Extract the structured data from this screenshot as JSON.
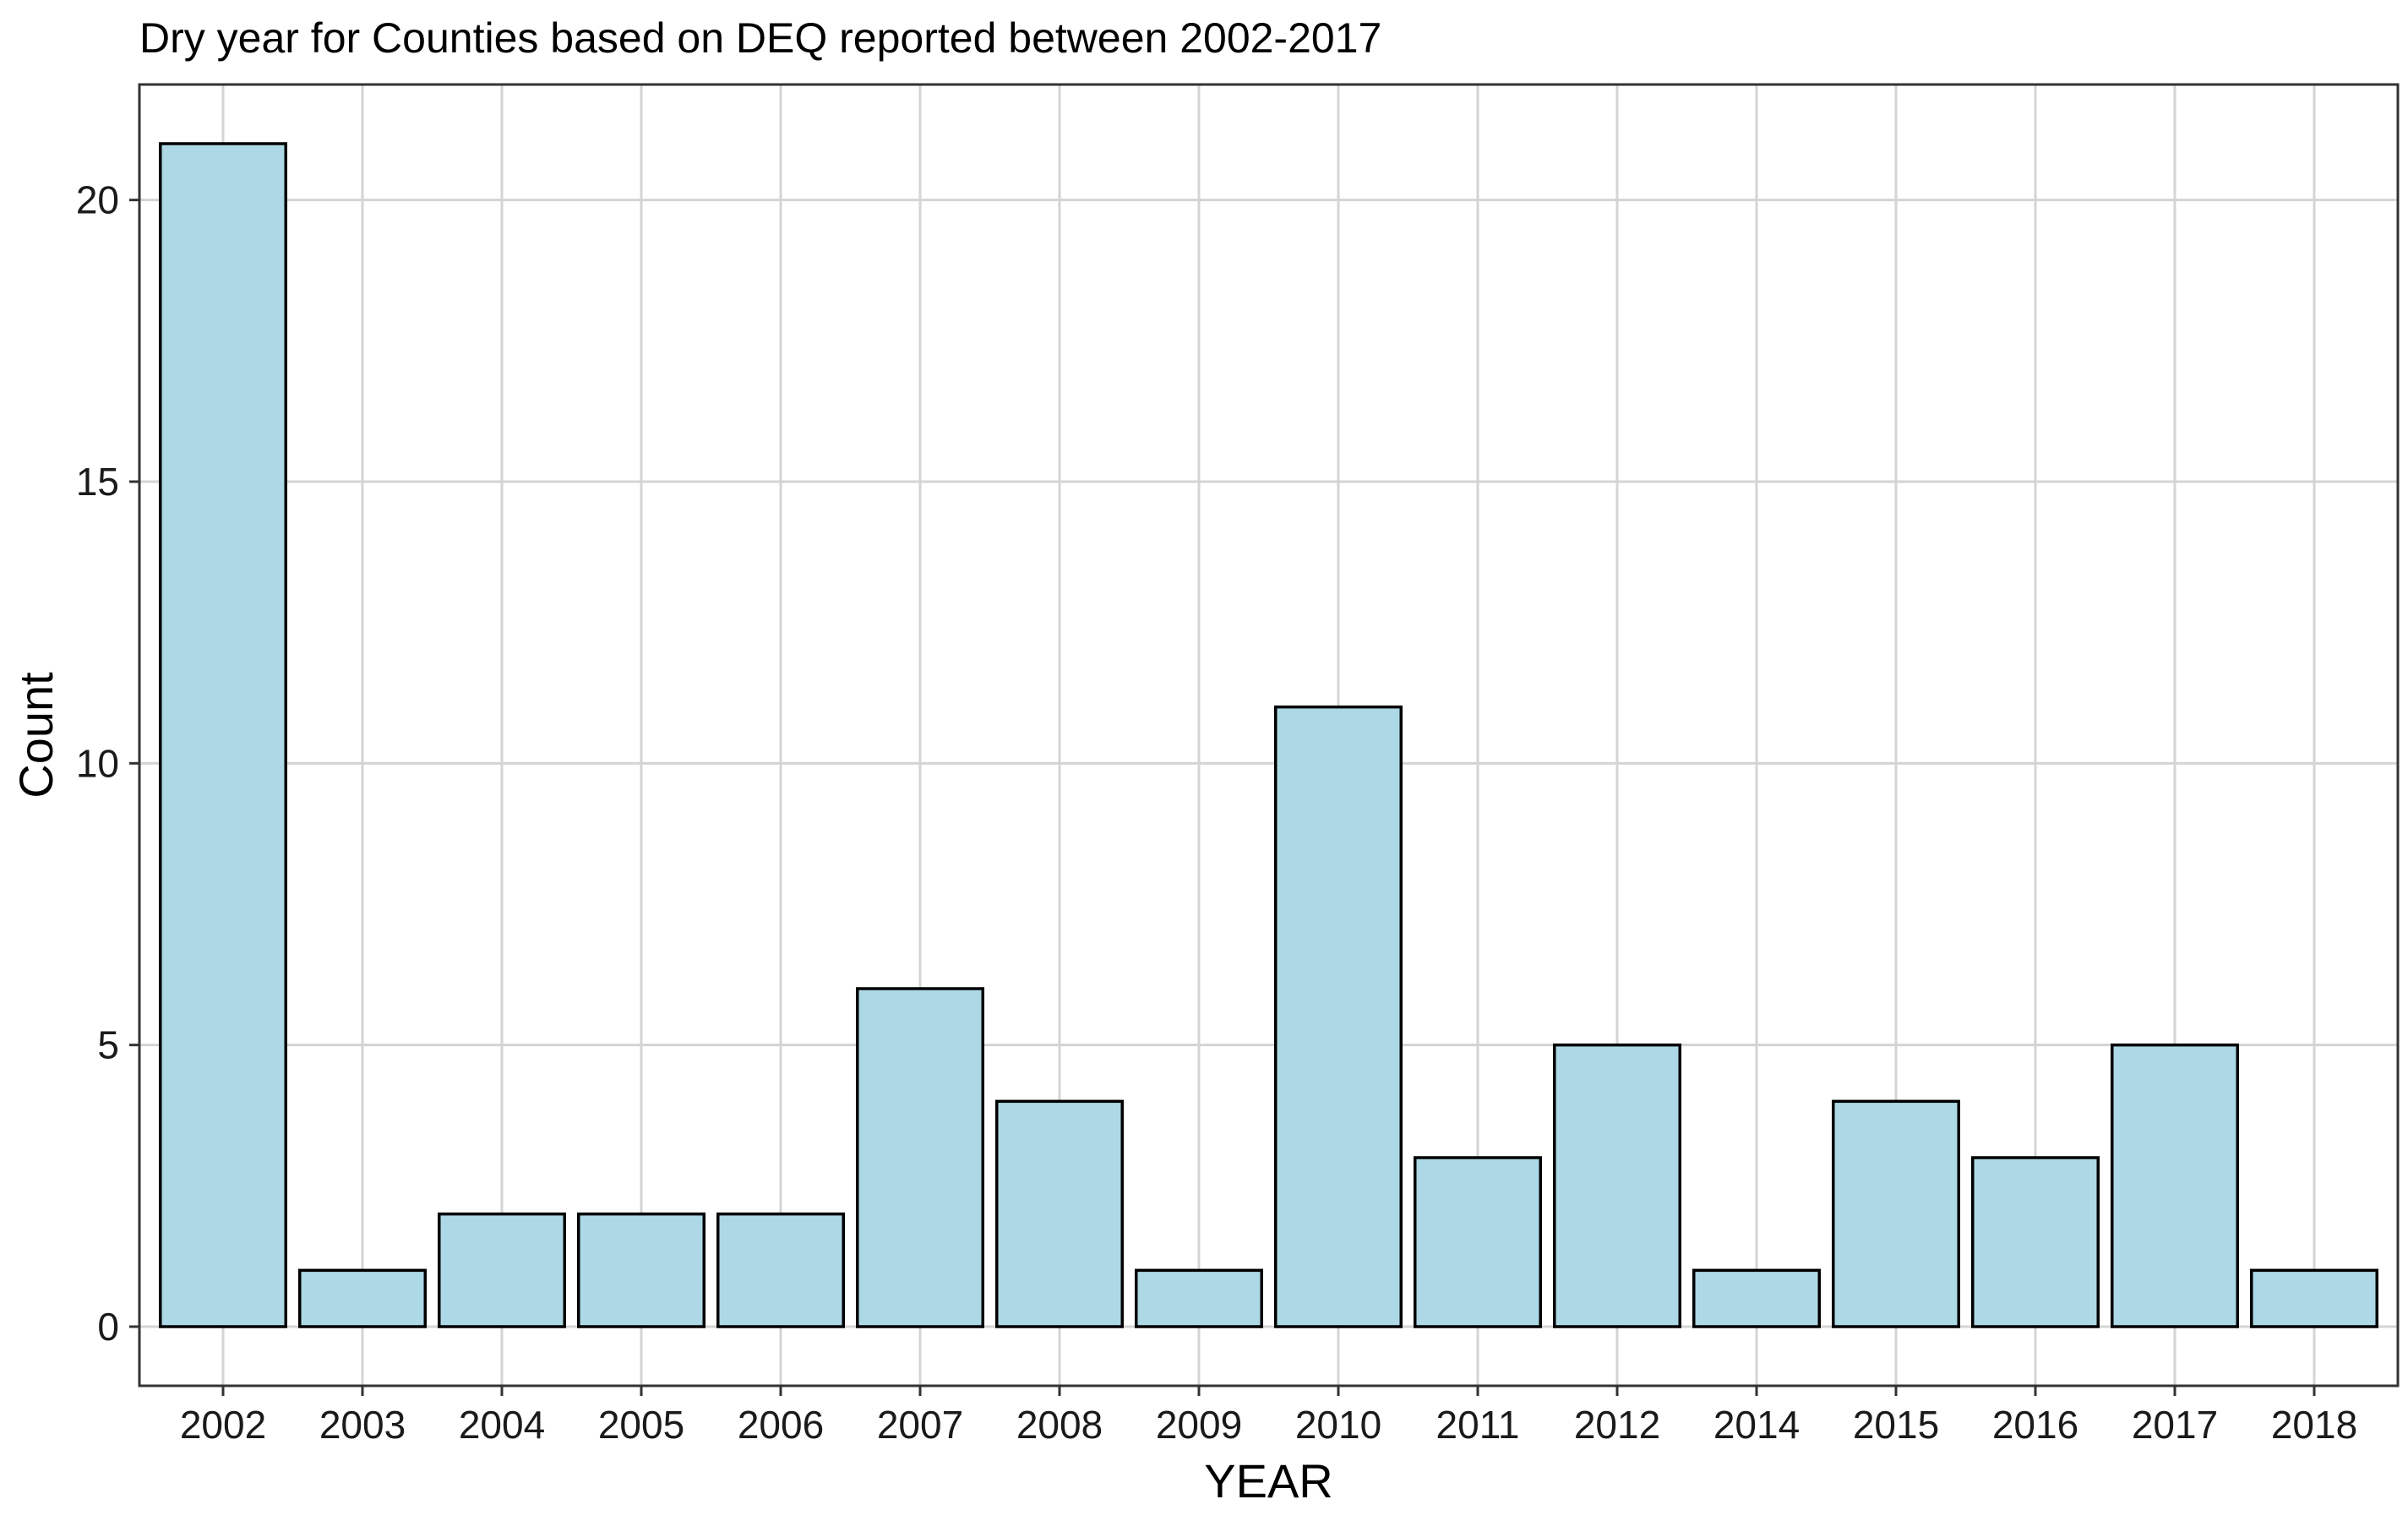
{
  "chart_data": {
    "type": "bar",
    "title": "Dry year for Counties based on DEQ reported between 2002-2017",
    "xlabel": "YEAR",
    "ylabel": "Count",
    "categories": [
      "2002",
      "2003",
      "2004",
      "2005",
      "2006",
      "2007",
      "2008",
      "2009",
      "2010",
      "2011",
      "2012",
      "2014",
      "2015",
      "2016",
      "2017",
      "2018"
    ],
    "values": [
      21,
      1,
      2,
      2,
      2,
      6,
      4,
      1,
      11,
      3,
      5,
      1,
      4,
      3,
      5,
      1
    ],
    "yticks": [
      0,
      5,
      10,
      15,
      20
    ],
    "ylim": [
      -1.05,
      22.05
    ],
    "grid": true,
    "legend": "none",
    "colors": {
      "bar_fill": "#add8e6",
      "bar_stroke": "#000000",
      "grid": "#d4d4d4"
    }
  }
}
